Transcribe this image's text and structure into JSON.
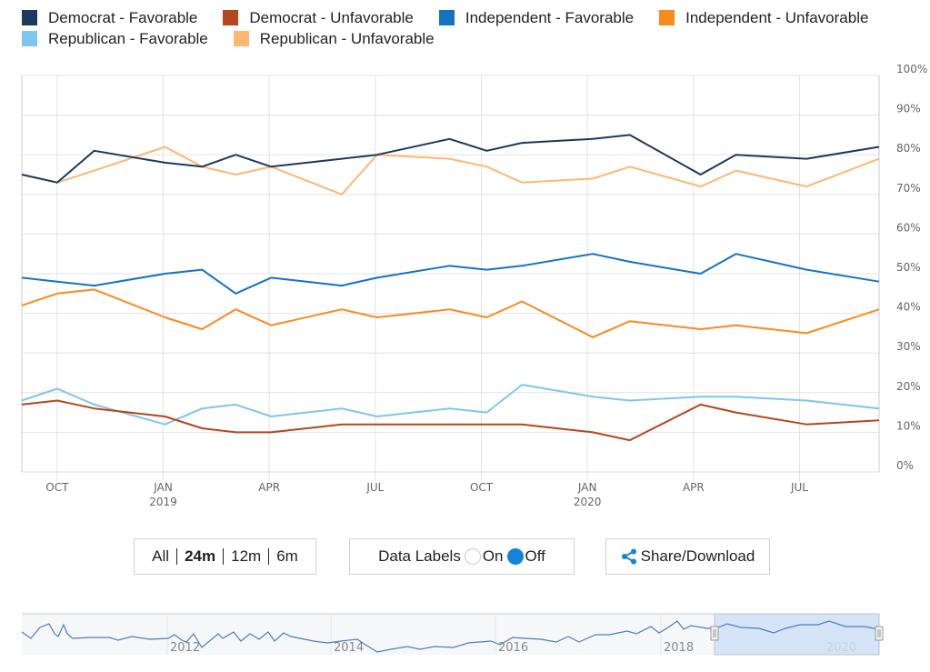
{
  "legend": [
    {
      "label": "Democrat - Favorable",
      "color": "#1b3a5e"
    },
    {
      "label": "Democrat - Unfavorable",
      "color": "#b5461d"
    },
    {
      "label": "Independent - Favorable",
      "color": "#1573c2"
    },
    {
      "label": "Independent - Unfavorable",
      "color": "#fb8a1e"
    },
    {
      "label": "Republican - Favorable",
      "color": "#7ec6ed"
    },
    {
      "label": "Republican - Unfavorable",
      "color": "#fdb871"
    }
  ],
  "controls": {
    "range_buttons": [
      "All",
      "24m",
      "12m",
      "6m"
    ],
    "range_active": "24m",
    "data_labels_label": "Data Labels",
    "on_label": "On",
    "off_label": "Off",
    "data_labels_state": "Off",
    "share_label": "Share/Download",
    "share_icon": "share-icon"
  },
  "navigator": {
    "year_labels": [
      "2012",
      "2014",
      "2016",
      "2018",
      "2020"
    ],
    "selection_color": "#cfe0f6",
    "line_color": "#4a7fc1"
  },
  "chart_data": {
    "type": "line",
    "title": "",
    "xlabel": "",
    "ylabel": "",
    "ylim": [
      0,
      100
    ],
    "y_ticks": [
      "0%",
      "10%",
      "20%",
      "30%",
      "40%",
      "50%",
      "60%",
      "70%",
      "80%",
      "90%",
      "100%"
    ],
    "x_ticks": [
      {
        "label": "OCT",
        "sub": "",
        "month_index": 1
      },
      {
        "label": "JAN",
        "sub": "2019",
        "month_index": 4
      },
      {
        "label": "APR",
        "sub": "",
        "month_index": 7
      },
      {
        "label": "JUL",
        "sub": "",
        "month_index": 10
      },
      {
        "label": "OCT",
        "sub": "",
        "month_index": 13
      },
      {
        "label": "JAN",
        "sub": "2020",
        "month_index": 16
      },
      {
        "label": "APR",
        "sub": "",
        "month_index": 19
      },
      {
        "label": "JUL",
        "sub": "",
        "month_index": 22
      }
    ],
    "x_range_months": [
      0,
      24
    ],
    "x": [
      0,
      1,
      2.05,
      4.05,
      5.1,
      6.05,
      7.05,
      9.05,
      10.05,
      12.1,
      13.15,
      14.15,
      16.15,
      17.2,
      19.2,
      20.2,
      22.2,
      24.25
    ],
    "grid": true,
    "series": [
      {
        "name": "Democrat - Favorable",
        "color": "#1b3a5e",
        "values": [
          75,
          73,
          81,
          78,
          77,
          80,
          77,
          79,
          80,
          84,
          81,
          83,
          84,
          85,
          75,
          80,
          79,
          82
        ]
      },
      {
        "name": "Democrat - Unfavorable",
        "color": "#b5461d",
        "values": [
          17,
          18,
          16,
          14,
          11,
          10,
          10,
          12,
          12,
          12,
          12,
          12,
          10,
          8,
          17,
          15,
          12,
          13
        ]
      },
      {
        "name": "Independent - Favorable",
        "color": "#1573c2",
        "values": [
          49,
          48,
          47,
          50,
          51,
          45,
          49,
          47,
          49,
          52,
          51,
          52,
          55,
          53,
          50,
          55,
          51,
          48
        ]
      },
      {
        "name": "Independent - Unfavorable",
        "color": "#fb8a1e",
        "values": [
          42,
          45,
          46,
          39,
          36,
          41,
          37,
          41,
          39,
          41,
          39,
          43,
          34,
          38,
          36,
          37,
          35,
          41
        ]
      },
      {
        "name": "Republican - Favorable",
        "color": "#7ec6ed",
        "values": [
          18,
          21,
          17,
          12,
          16,
          17,
          14,
          16,
          14,
          16,
          15,
          22,
          19,
          18,
          19,
          19,
          18,
          16
        ]
      },
      {
        "name": "Republican - Unfavorable",
        "color": "#fdb871",
        "values": [
          75,
          73,
          76,
          82,
          77,
          75,
          77,
          70,
          80,
          79,
          77,
          73,
          74,
          77,
          72,
          76,
          72,
          79
        ]
      }
    ]
  }
}
